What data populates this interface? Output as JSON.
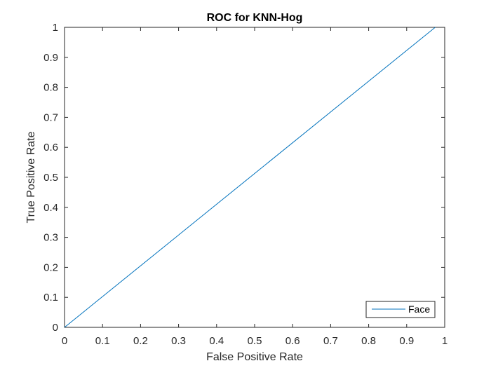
{
  "chart_data": {
    "type": "line",
    "title": "ROC for KNN-Hog",
    "xlabel": "False Positive Rate",
    "ylabel": "True Positive Rate",
    "xlim": [
      0,
      1
    ],
    "ylim": [
      0,
      1
    ],
    "xticks": [
      "0",
      "0.1",
      "0.2",
      "0.3",
      "0.4",
      "0.5",
      "0.6",
      "0.7",
      "0.8",
      "0.9",
      "1"
    ],
    "yticks": [
      "0",
      "0.1",
      "0.2",
      "0.3",
      "0.4",
      "0.5",
      "0.6",
      "0.7",
      "0.8",
      "0.9",
      "1"
    ],
    "grid": false,
    "legend_position": "bottom-right",
    "series": [
      {
        "name": "Face",
        "color": "#0072bd",
        "x": [
          0,
          0.975
        ],
        "y": [
          0,
          1
        ]
      }
    ]
  }
}
